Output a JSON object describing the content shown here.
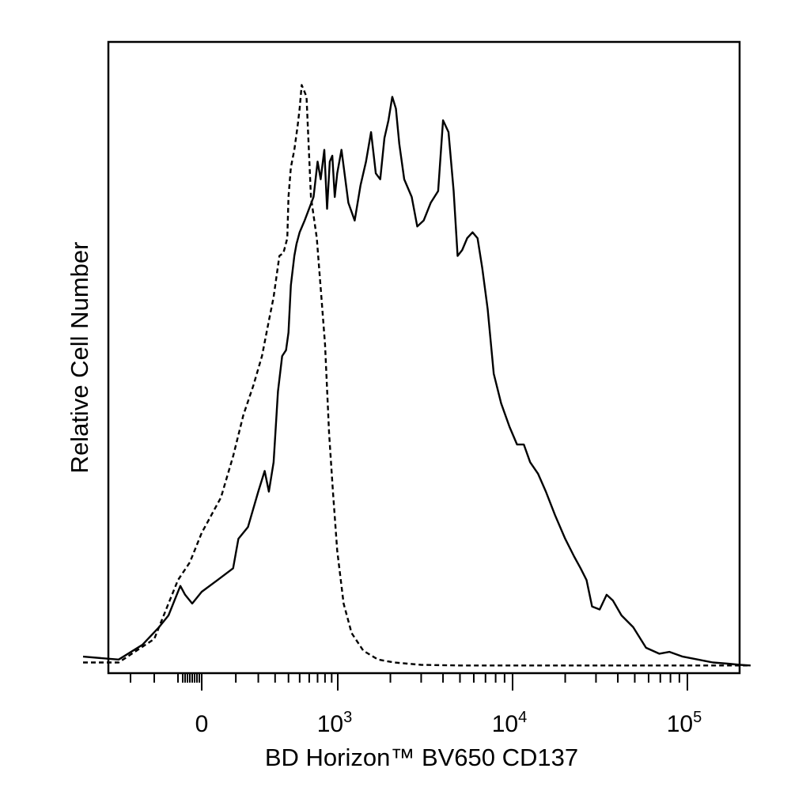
{
  "chart_data": {
    "type": "line",
    "title": "",
    "xlabel": "BD Horizon™ BV650 CD137",
    "ylabel": "Relative Cell Number",
    "x_scale": "biexponential",
    "xlim": [
      -500,
      250000
    ],
    "ylim": [
      0,
      100
    ],
    "grid": false,
    "legend": "none",
    "x_tick_labels": [
      {
        "value": 0,
        "base": "0",
        "exp": ""
      },
      {
        "value": 1000,
        "base": "10",
        "exp": "3"
      },
      {
        "value": 10000,
        "base": "10",
        "exp": "4"
      },
      {
        "value": 100000,
        "base": "10",
        "exp": "5"
      }
    ],
    "x_major_ticks": [
      -300,
      -200,
      -100,
      0,
      100,
      200,
      300,
      400,
      500,
      600,
      700,
      800,
      900,
      1000,
      10000,
      100000
    ],
    "x_minor_ticks": [
      2000,
      3000,
      4000,
      5000,
      6000,
      7000,
      8000,
      9000,
      20000,
      30000,
      40000,
      50000,
      60000,
      70000,
      80000,
      90000,
      200000
    ],
    "series": [
      {
        "style": "solid",
        "color": "#000000",
        "points": [
          [
            -500,
            2
          ],
          [
            -350,
            1.5
          ],
          [
            -250,
            4
          ],
          [
            -180,
            7
          ],
          [
            -140,
            9
          ],
          [
            -110,
            12
          ],
          [
            -90,
            14
          ],
          [
            -70,
            12.5
          ],
          [
            -40,
            11
          ],
          [
            0,
            13
          ],
          [
            40,
            15
          ],
          [
            90,
            17
          ],
          [
            110,
            22
          ],
          [
            150,
            24
          ],
          [
            200,
            30
          ],
          [
            235,
            33.5
          ],
          [
            260,
            30
          ],
          [
            290,
            35
          ],
          [
            320,
            47
          ],
          [
            350,
            53
          ],
          [
            380,
            54
          ],
          [
            400,
            57
          ],
          [
            420,
            65
          ],
          [
            450,
            70
          ],
          [
            470,
            72
          ],
          [
            500,
            74
          ],
          [
            550,
            76
          ],
          [
            650,
            80
          ],
          [
            700,
            86
          ],
          [
            740,
            83
          ],
          [
            790,
            88
          ],
          [
            830,
            78
          ],
          [
            870,
            86
          ],
          [
            910,
            87
          ],
          [
            950,
            80
          ],
          [
            990,
            84
          ],
          [
            1050,
            88
          ],
          [
            1150,
            79
          ],
          [
            1250,
            76
          ],
          [
            1350,
            82
          ],
          [
            1450,
            86
          ],
          [
            1550,
            91
          ],
          [
            1650,
            84
          ],
          [
            1750,
            83
          ],
          [
            1850,
            90
          ],
          [
            1950,
            93
          ],
          [
            2050,
            97
          ],
          [
            2150,
            95
          ],
          [
            2250,
            89
          ],
          [
            2400,
            83
          ],
          [
            2650,
            80
          ],
          [
            2850,
            75
          ],
          [
            3100,
            76
          ],
          [
            3400,
            79
          ],
          [
            3750,
            81
          ],
          [
            4000,
            93
          ],
          [
            4300,
            91
          ],
          [
            4600,
            81
          ],
          [
            4850,
            70
          ],
          [
            5150,
            71
          ],
          [
            5500,
            73
          ],
          [
            5900,
            74
          ],
          [
            6300,
            73
          ],
          [
            6700,
            68
          ],
          [
            7200,
            61
          ],
          [
            7800,
            50
          ],
          [
            8600,
            45
          ],
          [
            9600,
            41
          ],
          [
            10600,
            38
          ],
          [
            11600,
            38
          ],
          [
            12600,
            35
          ],
          [
            14000,
            33
          ],
          [
            15500,
            30
          ],
          [
            17500,
            26
          ],
          [
            20000,
            22
          ],
          [
            22500,
            19
          ],
          [
            24500,
            17
          ],
          [
            26500,
            15
          ],
          [
            28500,
            10.5
          ],
          [
            31500,
            10
          ],
          [
            34500,
            12.5
          ],
          [
            37500,
            11.5
          ],
          [
            42000,
            9
          ],
          [
            49000,
            7
          ],
          [
            58000,
            3.5
          ],
          [
            69000,
            2.5
          ],
          [
            79000,
            2.8
          ],
          [
            94000,
            2
          ],
          [
            115000,
            1.5
          ],
          [
            140000,
            1
          ],
          [
            170000,
            0.8
          ],
          [
            200000,
            0.6
          ],
          [
            230000,
            0.5
          ]
        ]
      },
      {
        "style": "dashed",
        "color": "#000000",
        "points": [
          [
            -500,
            1
          ],
          [
            -350,
            1
          ],
          [
            -200,
            5
          ],
          [
            -140,
            11
          ],
          [
            -100,
            15
          ],
          [
            -50,
            18
          ],
          [
            0,
            23
          ],
          [
            50,
            29
          ],
          [
            90,
            36
          ],
          [
            130,
            43
          ],
          [
            175,
            48
          ],
          [
            220,
            53
          ],
          [
            260,
            59
          ],
          [
            290,
            63
          ],
          [
            330,
            70
          ],
          [
            360,
            70.5
          ],
          [
            390,
            73
          ],
          [
            400,
            80
          ],
          [
            420,
            85
          ],
          [
            450,
            88
          ],
          [
            480,
            92
          ],
          [
            500,
            95
          ],
          [
            520,
            99
          ],
          [
            545,
            98
          ],
          [
            570,
            97
          ],
          [
            620,
            80
          ],
          [
            690,
            73
          ],
          [
            750,
            63
          ],
          [
            800,
            55
          ],
          [
            860,
            40
          ],
          [
            920,
            30
          ],
          [
            990,
            20
          ],
          [
            1080,
            11
          ],
          [
            1200,
            6
          ],
          [
            1400,
            3
          ],
          [
            1700,
            1.5
          ],
          [
            2100,
            1
          ],
          [
            3000,
            0.6
          ],
          [
            5000,
            0.5
          ],
          [
            10000,
            0.5
          ],
          [
            100000,
            0.5
          ],
          [
            230000,
            0.5
          ]
        ]
      }
    ]
  }
}
